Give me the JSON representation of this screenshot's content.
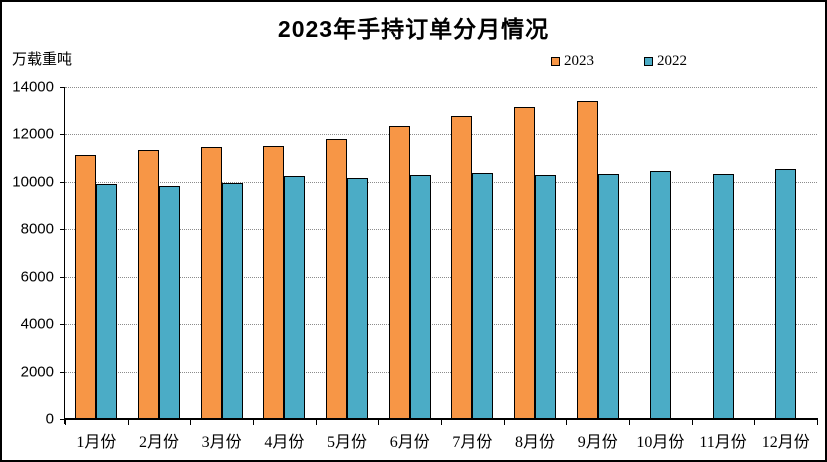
{
  "chart": {
    "title": "2023年手持订单分月情况",
    "unit_label": "万载重吨"
  },
  "legend": {
    "items": [
      {
        "label": "2023",
        "color": "#F79646"
      },
      {
        "label": "2022",
        "color": "#4BACC6"
      }
    ]
  },
  "colors": {
    "bar_outline": "#000000",
    "gridline": "#8c8c8c",
    "background": "#ffffff",
    "frame_border": "#000000"
  },
  "chart_data": {
    "type": "bar",
    "title": "2023年手持订单分月情况",
    "xlabel": "",
    "ylabel": "万载重吨",
    "categories": [
      "1月份",
      "2月份",
      "3月份",
      "4月份",
      "5月份",
      "6月份",
      "7月份",
      "8月份",
      "9月份",
      "10月份",
      "11月份",
      "12月份"
    ],
    "series": [
      {
        "name": "2023",
        "color": "#F79646",
        "values": [
          11114,
          11354,
          11452,
          11530,
          11799,
          12377,
          12790,
          13156,
          13393,
          null,
          null,
          null
        ]
      },
      {
        "name": "2022",
        "color": "#4BACC6",
        "values": [
          9890,
          9810,
          9934,
          10247,
          10171,
          10274,
          10366,
          10290,
          10325,
          10456,
          10349,
          10557
        ]
      }
    ],
    "ylim": [
      0,
      14000
    ],
    "yticks": [
      0,
      2000,
      4000,
      6000,
      8000,
      10000,
      12000,
      14000
    ],
    "grid": true,
    "gridline_style": "dotted",
    "legend_position": "top"
  }
}
